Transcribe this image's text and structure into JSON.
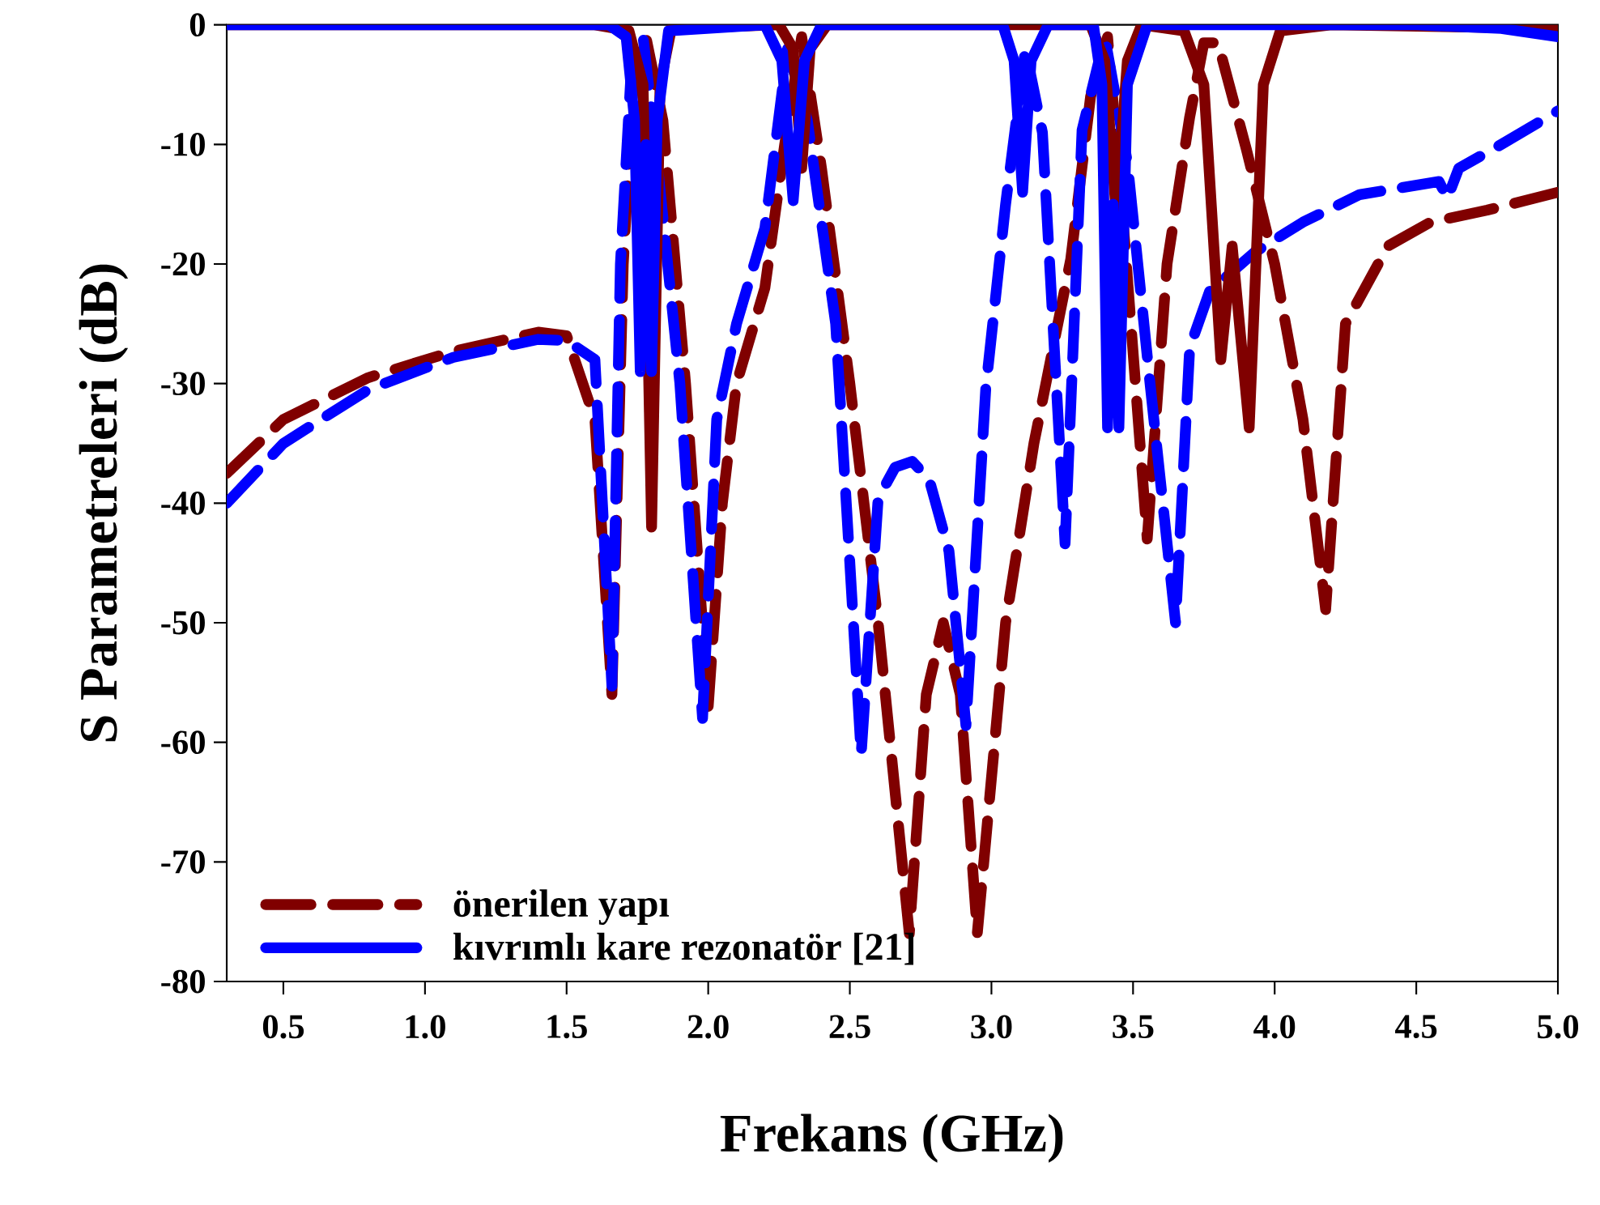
{
  "chart_data": {
    "type": "line",
    "xlabel": "Frekans (GHz)",
    "ylabel": "S Parametreleri (dB)",
    "xlim": [
      0.3,
      5.0
    ],
    "ylim": [
      -80,
      0
    ],
    "xticks": [
      {
        "value": 0.5,
        "label": "0.5"
      },
      {
        "value": 1.0,
        "label": "1.0"
      },
      {
        "value": 1.5,
        "label": "1.5"
      },
      {
        "value": 2.0,
        "label": "2.0"
      },
      {
        "value": 2.5,
        "label": "2.5"
      },
      {
        "value": 3.0,
        "label": "3.0"
      },
      {
        "value": 3.5,
        "label": "3.5"
      },
      {
        "value": 4.0,
        "label": "4.0"
      },
      {
        "value": 4.5,
        "label": "4.5"
      },
      {
        "value": 5.0,
        "label": "5.0"
      }
    ],
    "yticks": [
      0,
      -10,
      -20,
      -30,
      -40,
      -50,
      -60,
      -70,
      -80
    ],
    "grid": false,
    "legend": "bottom left",
    "marker": "none",
    "series": [
      {
        "name": "önerilen yapı",
        "color": "#800000",
        "line_style": "dashed",
        "x": [
          0.3,
          0.5,
          0.8,
          1.1,
          1.4,
          1.5,
          1.6,
          1.66,
          1.7,
          1.74,
          1.78,
          1.84,
          1.92,
          2.0,
          2.05,
          2.1,
          2.2,
          2.27,
          2.33,
          2.4,
          2.5,
          2.6,
          2.71,
          2.77,
          2.83,
          2.89,
          2.95,
          3.05,
          3.15,
          3.28,
          3.35,
          3.41,
          3.47,
          3.55,
          3.62,
          3.7,
          3.75,
          3.8,
          3.9,
          4.0,
          4.1,
          4.18,
          4.25,
          4.4,
          4.55,
          4.75,
          5.0
        ],
        "values": [
          -37.5,
          -33,
          -29.5,
          -27.3,
          -25.7,
          -26,
          -33,
          -56,
          -20,
          -3,
          -1,
          -8,
          -30,
          -57,
          -40,
          -30,
          -22,
          -10,
          -1,
          -12,
          -30,
          -50,
          -76,
          -56,
          -50,
          -56,
          -76,
          -50,
          -35,
          -19.6,
          -6,
          -1,
          -18,
          -43,
          -20,
          -7.7,
          -1.5,
          -1.5,
          -10.4,
          -20,
          -33,
          -48.9,
          -25,
          -18.5,
          -16.5,
          -15.5,
          -14
        ]
      },
      {
        "color": "#0000ff",
        "line_style": "dashed",
        "x": [
          0.3,
          0.5,
          0.8,
          1.1,
          1.4,
          1.5,
          1.6,
          1.66,
          1.69,
          1.73,
          1.77,
          1.82,
          1.9,
          1.98,
          2.03,
          2.1,
          2.2,
          2.28,
          2.35,
          2.45,
          2.54,
          2.6,
          2.66,
          2.72,
          2.78,
          2.85,
          2.91,
          2.98,
          3.05,
          3.12,
          3.18,
          3.26,
          3.32,
          3.4,
          3.48,
          3.56,
          3.65,
          3.7,
          3.77,
          3.93,
          4.1,
          4.3,
          4.58,
          4.61,
          4.65,
          4.8,
          5.0
        ],
        "values": [
          -40,
          -35,
          -30.5,
          -27.8,
          -26.3,
          -26.4,
          -28,
          -55.3,
          -20,
          -3,
          -1,
          -11.5,
          -30,
          -58,
          -33,
          -25,
          -17,
          -2,
          -8,
          -25,
          -61,
          -39.6,
          -37,
          -36.5,
          -38,
          -44,
          -58.6,
          -30.4,
          -15,
          -2,
          -9,
          -43.4,
          -8.8,
          -1,
          -11.5,
          -30,
          -50,
          -27,
          -22.3,
          -19,
          -16.5,
          -14.2,
          -13.1,
          -14.5,
          -12,
          -10,
          -7.2
        ]
      },
      {
        "color": "#800000",
        "line_style": "solid",
        "x": [
          0.3,
          1.0,
          1.6,
          1.72,
          1.77,
          1.8,
          1.83,
          1.87,
          2.25,
          2.3,
          2.33,
          2.36,
          2.42,
          3.35,
          3.4,
          3.44,
          3.48,
          3.53,
          3.68,
          3.75,
          3.81,
          3.85,
          3.91,
          3.96,
          4.02,
          4.2,
          5.0
        ],
        "values": [
          0,
          0,
          0,
          -0.5,
          -5,
          -42,
          -5,
          -0.3,
          0,
          -2,
          -12,
          -2,
          0,
          0,
          -3,
          -15.6,
          -3,
          0,
          -0.5,
          -5,
          -28,
          -18.5,
          -33.7,
          -5,
          -0.5,
          0,
          -0.3
        ]
      },
      {
        "name": "kıvrımlı kare rezonatör [21]",
        "color": "#0000ff",
        "line_style": "solid",
        "x": [
          0.3,
          1.0,
          1.65,
          1.71,
          1.74,
          1.76,
          1.78,
          1.8,
          1.82,
          1.86,
          2.2,
          2.26,
          2.3,
          2.34,
          2.4,
          3.04,
          3.08,
          3.11,
          3.14,
          3.2,
          3.36,
          3.39,
          3.41,
          3.43,
          3.45,
          3.48,
          3.55,
          4.5,
          4.8,
          5.0
        ],
        "values": [
          0,
          0,
          0,
          -1,
          -8,
          -29,
          -10,
          -29,
          -8,
          -0.5,
          0,
          -3,
          -14.7,
          -3,
          0,
          0,
          -3,
          -14,
          -3,
          0,
          0,
          -5,
          -33.7,
          -15,
          -33.7,
          -5,
          0,
          0,
          -0.3,
          -1
        ]
      }
    ]
  }
}
